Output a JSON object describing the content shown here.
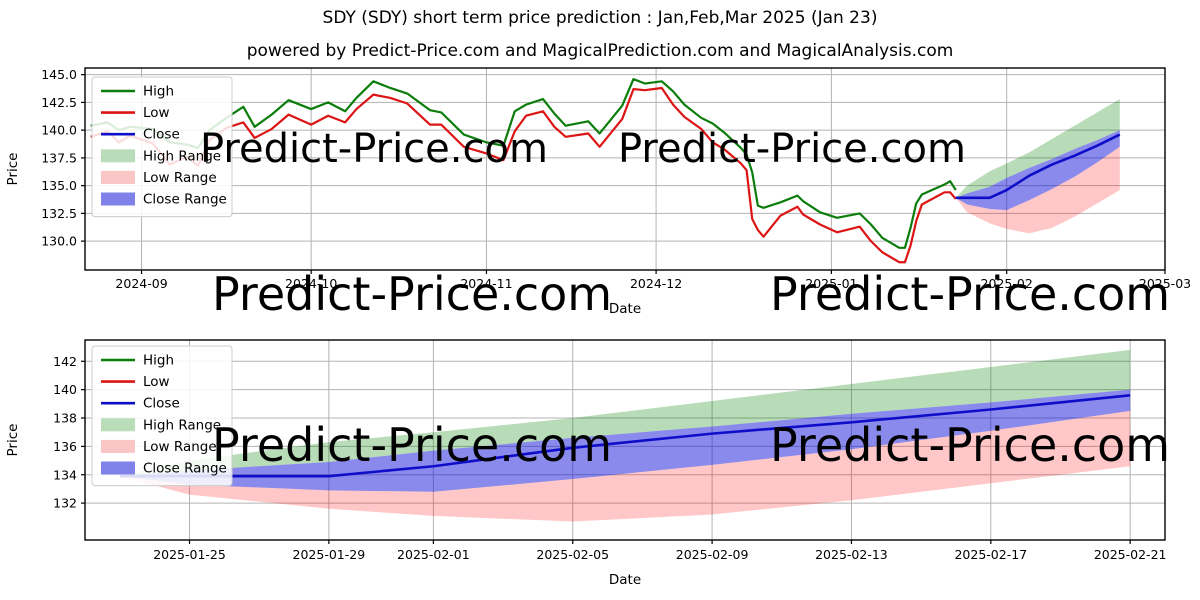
{
  "page": {
    "title": "SDY (SDY) short term price prediction : Jan,Feb,Mar 2025 (Jan 23)",
    "subtitle": "powered by Predict-Price.com and MagicalPrediction.com and MagicalAnalysis.com",
    "watermark_text": "Predict-Price.com"
  },
  "colors": {
    "high_line": "#0b7d0b",
    "low_line": "#dc1414",
    "close_line": "#0e0ec8",
    "high_range_fill": "rgba(0,128,0,0.28)",
    "low_range_fill": "rgba(255,0,0,0.22)",
    "close_range_fill": "rgba(10,10,215,0.48)",
    "high_swatch": "#b9ddb9",
    "low_swatch": "#f9c5c5",
    "close_swatch": "#8181ea",
    "grid": "#b3b3b3",
    "axis": "#000000",
    "watermark": "rgba(0,0,0,0.11)"
  },
  "legend_items": [
    {
      "label": "High",
      "type": "line",
      "color_key": "high_line"
    },
    {
      "label": "Low",
      "type": "line",
      "color_key": "low_line"
    },
    {
      "label": "Close",
      "type": "line",
      "color_key": "close_line"
    },
    {
      "label": "High Range",
      "type": "fill",
      "color_key": "high_swatch"
    },
    {
      "label": "Low Range",
      "type": "fill",
      "color_key": "low_swatch"
    },
    {
      "label": "Close Range",
      "type": "fill",
      "color_key": "close_swatch"
    }
  ],
  "chart_data": [
    {
      "type": "line",
      "name": "overview",
      "title": "SDY daily High/Low history with Jan-Feb 2025 prediction ranges",
      "xlabel": "Date",
      "ylabel": "Price",
      "xlim": [
        "2024-08-22",
        "2025-03-01"
      ],
      "ylim": [
        127.4,
        145.6
      ],
      "grid": true,
      "legend_position": "upper-left",
      "x_ticks": [
        {
          "date": "2024-09-01",
          "label": "2024-09"
        },
        {
          "date": "2024-10-01",
          "label": "2024-10"
        },
        {
          "date": "2024-11-01",
          "label": "2024-11"
        },
        {
          "date": "2024-12-01",
          "label": "2024-12"
        },
        {
          "date": "2025-01-01",
          "label": "2025-01"
        },
        {
          "date": "2025-02-01",
          "label": "2025-02"
        },
        {
          "date": "2025-03-01",
          "label": "2025-03"
        }
      ],
      "y_ticks": [
        {
          "value": 145.0,
          "label": "145.0"
        },
        {
          "value": 142.5,
          "label": "142.5"
        },
        {
          "value": 140.0,
          "label": "140.0"
        },
        {
          "value": 137.5,
          "label": "137.5"
        },
        {
          "value": 135.0,
          "label": "135.0"
        },
        {
          "value": 132.5,
          "label": "132.5"
        },
        {
          "value": 130.0,
          "label": "130.0"
        }
      ],
      "history": {
        "dates": [
          "2024-08-23",
          "2024-08-26",
          "2024-08-28",
          "2024-08-30",
          "2024-09-03",
          "2024-09-06",
          "2024-09-09",
          "2024-09-11",
          "2024-09-13",
          "2024-09-16",
          "2024-09-19",
          "2024-09-21",
          "2024-09-24",
          "2024-09-27",
          "2024-10-01",
          "2024-10-04",
          "2024-10-07",
          "2024-10-09",
          "2024-10-12",
          "2024-10-15",
          "2024-10-18",
          "2024-10-22",
          "2024-10-24",
          "2024-10-28",
          "2024-11-01",
          "2024-11-04",
          "2024-11-06",
          "2024-11-08",
          "2024-11-11",
          "2024-11-13",
          "2024-11-15",
          "2024-11-19",
          "2024-11-21",
          "2024-11-25",
          "2024-11-27",
          "2024-11-29",
          "2024-12-02",
          "2024-12-04",
          "2024-12-06",
          "2024-12-09",
          "2024-12-11",
          "2024-12-13",
          "2024-12-16",
          "2024-12-17",
          "2024-12-18",
          "2024-12-19",
          "2024-12-20",
          "2024-12-23",
          "2024-12-26",
          "2024-12-27",
          "2024-12-30",
          "2025-01-02",
          "2025-01-06",
          "2025-01-08",
          "2025-01-10",
          "2025-01-13",
          "2025-01-14",
          "2025-01-15",
          "2025-01-16",
          "2025-01-17",
          "2025-01-21",
          "2025-01-22",
          "2025-01-23"
        ],
        "high": [
          140.4,
          140.7,
          140.0,
          140.3,
          140.1,
          138.9,
          138.7,
          138.4,
          140.0,
          141.1,
          142.1,
          140.3,
          141.4,
          142.7,
          141.9,
          142.5,
          141.7,
          142.9,
          144.4,
          143.8,
          143.3,
          141.8,
          141.6,
          139.6,
          138.9,
          138.6,
          141.7,
          142.3,
          142.8,
          141.5,
          140.4,
          140.8,
          139.7,
          142.2,
          144.6,
          144.2,
          144.4,
          143.5,
          142.3,
          141.1,
          140.6,
          139.8,
          138.4,
          137.8,
          136.2,
          133.2,
          133.0,
          133.5,
          134.1,
          133.6,
          132.6,
          132.1,
          132.5,
          131.5,
          130.3,
          129.4,
          129.4,
          131.2,
          133.4,
          134.2,
          135.1,
          135.4,
          134.6
        ],
        "low": [
          139.4,
          139.9,
          138.9,
          139.5,
          138.8,
          136.9,
          137.6,
          136.8,
          139.1,
          140.2,
          140.7,
          139.3,
          140.1,
          141.4,
          140.5,
          141.3,
          140.7,
          141.9,
          143.2,
          142.9,
          142.4,
          140.5,
          140.5,
          138.5,
          137.9,
          137.3,
          139.9,
          141.3,
          141.7,
          140.3,
          139.4,
          139.7,
          138.5,
          141.0,
          143.7,
          143.6,
          143.8,
          142.3,
          141.2,
          140.1,
          138.9,
          138.3,
          137.0,
          136.4,
          132.0,
          131.0,
          130.4,
          132.3,
          133.1,
          132.4,
          131.5,
          130.8,
          131.3,
          130.0,
          129.0,
          128.1,
          128.1,
          129.6,
          131.8,
          133.3,
          134.4,
          134.4,
          133.8
        ]
      },
      "prediction": {
        "dates": [
          "2025-01-23",
          "2025-01-25",
          "2025-01-29",
          "2025-02-01",
          "2025-02-05",
          "2025-02-09",
          "2025-02-13",
          "2025-02-17",
          "2025-02-21"
        ],
        "close": [
          133.9,
          133.9,
          133.9,
          134.6,
          135.9,
          136.9,
          137.7,
          138.6,
          139.6
        ],
        "high_range_top": [
          133.9,
          135.0,
          136.3,
          137.0,
          138.0,
          139.2,
          140.4,
          141.6,
          142.8
        ],
        "close_range_top": [
          133.9,
          134.3,
          134.9,
          135.7,
          136.6,
          137.4,
          138.3,
          139.1,
          140.0
        ],
        "close_range_bottom": [
          133.9,
          133.3,
          132.9,
          132.8,
          133.7,
          134.7,
          135.8,
          137.1,
          138.5
        ],
        "low_range_bottom": [
          133.9,
          132.6,
          131.6,
          131.1,
          130.7,
          131.2,
          132.2,
          133.4,
          134.6
        ]
      }
    },
    {
      "type": "line",
      "name": "prediction-zoom",
      "title": "SDY predicted Close with High/Low/Close ranges, Jan 23 - Feb 21 2025",
      "xlabel": "Date",
      "ylabel": "Price",
      "xlim": [
        "2025-01-22",
        "2025-02-22"
      ],
      "ylim": [
        129.4,
        143.5
      ],
      "grid": true,
      "legend_position": "upper-left",
      "x_ticks": [
        {
          "date": "2025-01-25",
          "label": "2025-01-25"
        },
        {
          "date": "2025-01-29",
          "label": "2025-01-29"
        },
        {
          "date": "2025-02-01",
          "label": "2025-02-01"
        },
        {
          "date": "2025-02-05",
          "label": "2025-02-05"
        },
        {
          "date": "2025-02-09",
          "label": "2025-02-09"
        },
        {
          "date": "2025-02-13",
          "label": "2025-02-13"
        },
        {
          "date": "2025-02-17",
          "label": "2025-02-17"
        },
        {
          "date": "2025-02-21",
          "label": "2025-02-21"
        }
      ],
      "y_ticks": [
        {
          "value": 142,
          "label": "142"
        },
        {
          "value": 140,
          "label": "140"
        },
        {
          "value": 138,
          "label": "138"
        },
        {
          "value": 136,
          "label": "136"
        },
        {
          "value": 134,
          "label": "134"
        },
        {
          "value": 132,
          "label": "132"
        }
      ],
      "prediction": {
        "dates": [
          "2025-01-23",
          "2025-01-25",
          "2025-01-29",
          "2025-02-01",
          "2025-02-05",
          "2025-02-09",
          "2025-02-13",
          "2025-02-17",
          "2025-02-21"
        ],
        "close": [
          133.9,
          133.9,
          133.9,
          134.6,
          135.9,
          136.9,
          137.7,
          138.6,
          139.6
        ],
        "high_range_top": [
          133.9,
          135.0,
          136.3,
          137.0,
          138.0,
          139.2,
          140.4,
          141.6,
          142.8
        ],
        "close_range_top": [
          133.9,
          134.3,
          134.9,
          135.7,
          136.6,
          137.4,
          138.3,
          139.1,
          140.0
        ],
        "close_range_bottom": [
          133.9,
          133.3,
          132.9,
          132.8,
          133.7,
          134.7,
          135.8,
          137.1,
          138.5
        ],
        "low_range_bottom": [
          133.9,
          132.6,
          131.6,
          131.1,
          130.7,
          131.2,
          132.2,
          133.4,
          134.6
        ]
      }
    }
  ]
}
